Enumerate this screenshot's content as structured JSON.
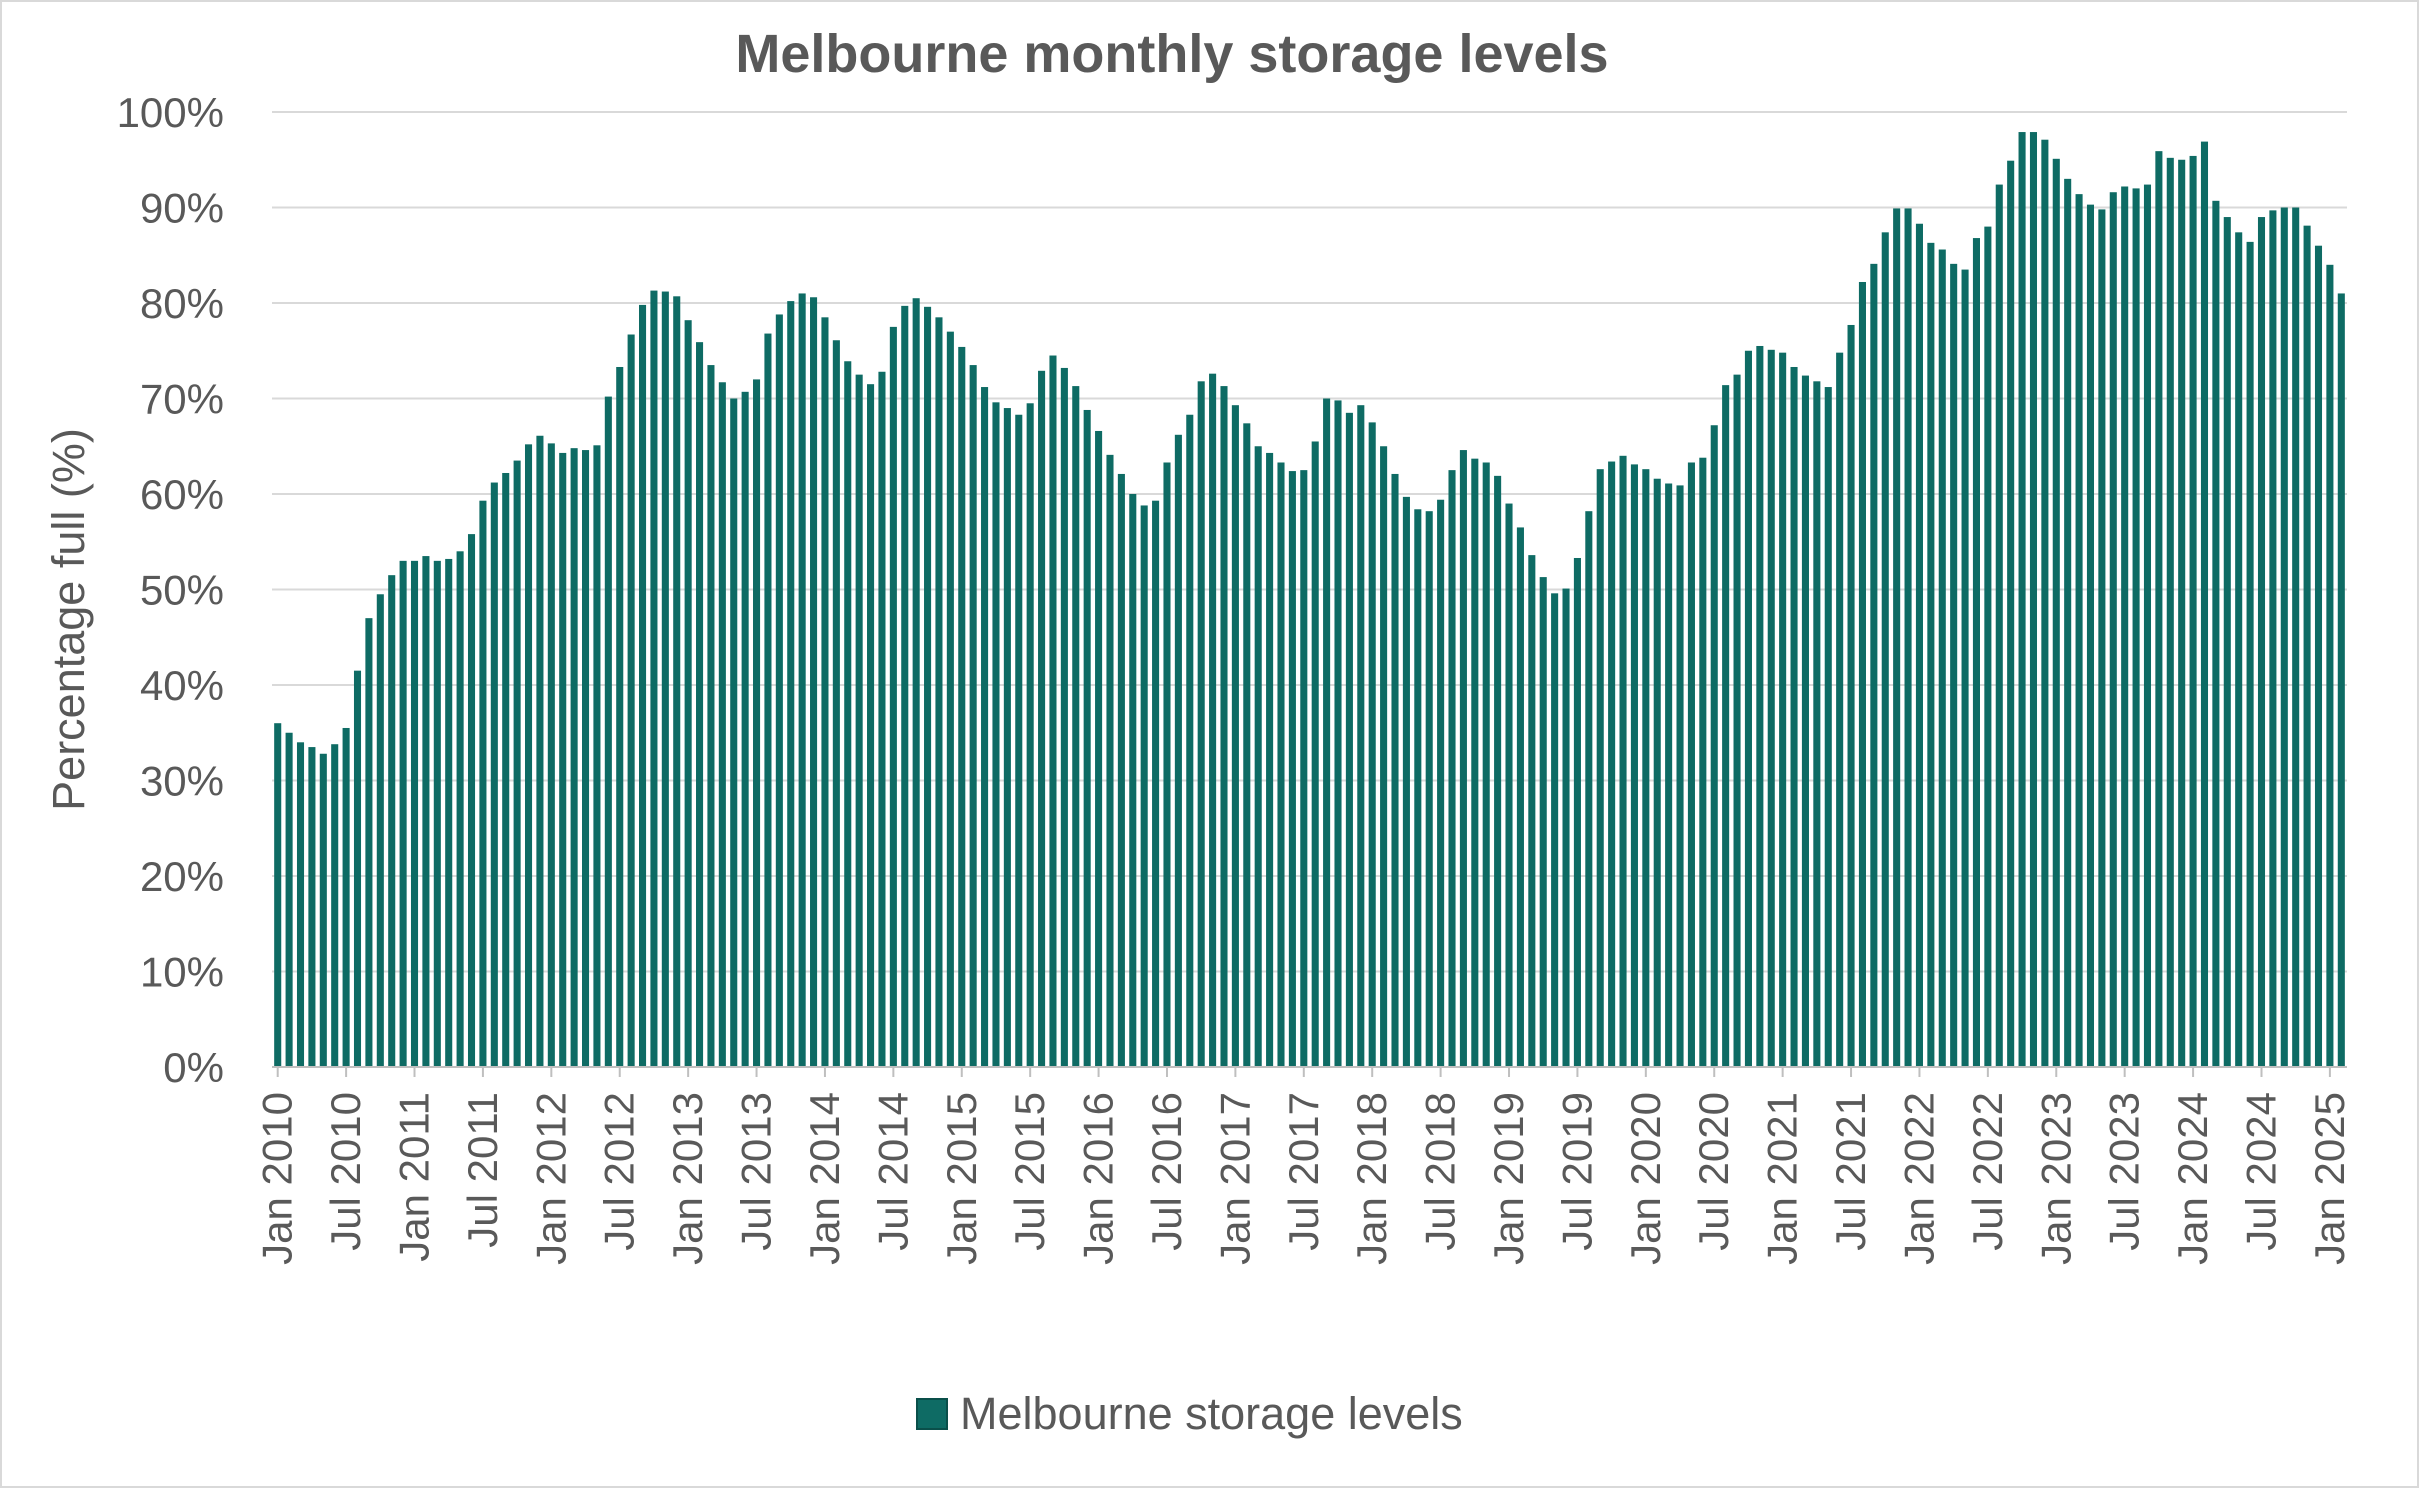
{
  "chart_data": {
    "type": "bar",
    "title": "Melbourne monthly storage levels",
    "xlabel": "",
    "ylabel": "Percentage full (%)",
    "ylim": [
      0,
      100
    ],
    "y_ticks": [
      "0%",
      "10%",
      "20%",
      "30%",
      "40%",
      "50%",
      "60%",
      "70%",
      "80%",
      "90%",
      "100%"
    ],
    "x_tick_labels": [
      "Jan 2010",
      "Jul 2010",
      "Jan 2011",
      "Jul 2011",
      "Jan 2012",
      "Jul 2012",
      "Jan 2013",
      "Jul 2013",
      "Jan 2014",
      "Jul 2014",
      "Jan 2015",
      "Jul 2015",
      "Jan 2016",
      "Jul 2016",
      "Jan 2017",
      "Jul 2017",
      "Jan 2018",
      "Jul 2018",
      "Jan 2019",
      "Jul 2019",
      "Jan 2020",
      "Jul 2020",
      "Jan 2021",
      "Jul 2021",
      "Jan 2022",
      "Jul 2022",
      "Jan 2023",
      "Jul 2023",
      "Jan 2024",
      "Jul 2024",
      "Jan 2025"
    ],
    "grid": true,
    "legend_position": "bottom",
    "series": [
      {
        "name": "Melbourne storage levels",
        "color": "#0e6b64",
        "values": [
          36,
          35,
          34,
          33.5,
          32.8,
          33.8,
          35.5,
          41.5,
          47,
          49.5,
          51.5,
          53,
          53,
          53.5,
          53,
          53.2,
          54,
          55.8,
          59.3,
          61.2,
          62.2,
          63.5,
          65.2,
          66.1,
          65.3,
          64.3,
          64.8,
          64.6,
          65.1,
          70.2,
          73.3,
          76.7,
          79.8,
          81.3,
          81.2,
          80.7,
          78.2,
          75.9,
          73.5,
          71.7,
          70,
          70.7,
          72,
          76.8,
          78.8,
          80.2,
          81,
          80.6,
          78.5,
          76.1,
          73.9,
          72.5,
          71.5,
          72.8,
          77.5,
          79.7,
          80.5,
          79.6,
          78.5,
          77,
          75.4,
          73.5,
          71.2,
          69.6,
          69,
          68.3,
          69.5,
          72.9,
          74.5,
          73.2,
          71.3,
          68.8,
          66.6,
          64.1,
          62.1,
          60,
          58.8,
          59.3,
          63.3,
          66.2,
          68.3,
          71.8,
          72.6,
          71.3,
          69.3,
          67.4,
          65,
          64.3,
          63.3,
          62.4,
          62.5,
          65.5,
          70,
          69.8,
          68.5,
          69.3,
          67.5,
          65,
          62.1,
          59.7,
          58.4,
          58.2,
          59.4,
          62.5,
          64.6,
          63.7,
          63.3,
          61.9,
          59,
          56.5,
          53.6,
          51.3,
          49.6,
          50.1,
          53.3,
          58.2,
          62.6,
          63.4,
          64,
          63.1,
          62.6,
          61.6,
          61.1,
          60.9,
          63.3,
          63.8,
          67.2,
          71.4,
          72.5,
          75,
          75.5,
          75.1,
          74.8,
          73.3,
          72.4,
          71.8,
          71.2,
          74.8,
          77.7,
          82.2,
          84.1,
          87.4,
          89.9,
          89.9,
          88.3,
          86.3,
          85.6,
          84.1,
          83.5,
          86.8,
          88,
          92.4,
          94.9,
          97.9,
          97.9,
          97.1,
          95.1,
          93,
          91.4,
          90.3,
          89.8,
          91.6,
          92.2,
          92,
          92.4,
          95.9,
          95.2,
          95,
          95.4,
          96.9,
          90.7,
          89,
          87.4,
          86.4,
          89,
          89.7,
          90,
          90,
          88.1,
          86,
          84,
          81
        ]
      }
    ]
  }
}
